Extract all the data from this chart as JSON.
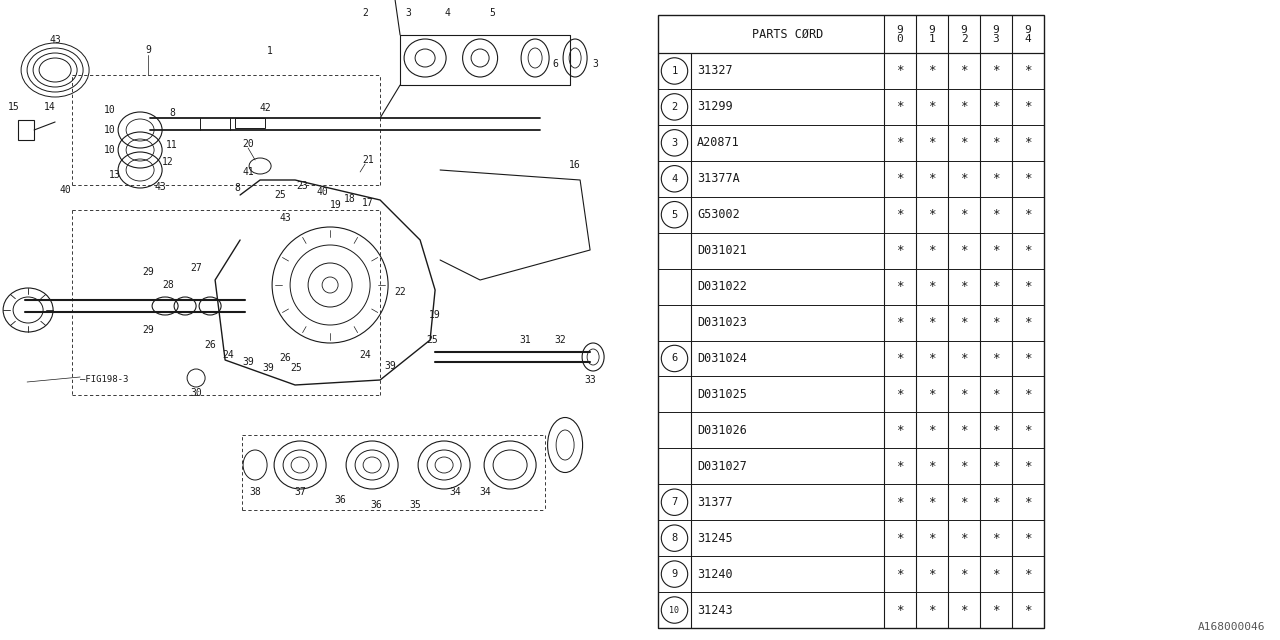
{
  "bg_color": "#ffffff",
  "line_color": "#1a1a1a",
  "watermark": "A168000046",
  "table": {
    "rows": [
      {
        "ref": "1",
        "part": "31327",
        "vals": [
          "*",
          "*",
          "*",
          "*",
          "*"
        ]
      },
      {
        "ref": "2",
        "part": "31299",
        "vals": [
          "*",
          "*",
          "*",
          "*",
          "*"
        ]
      },
      {
        "ref": "3",
        "part": "A20871",
        "vals": [
          "*",
          "*",
          "*",
          "*",
          "*"
        ]
      },
      {
        "ref": "4",
        "part": "31377A",
        "vals": [
          "*",
          "*",
          "*",
          "*",
          "*"
        ]
      },
      {
        "ref": "5",
        "part": "G53002",
        "vals": [
          "*",
          "*",
          "*",
          "*",
          "*"
        ]
      },
      {
        "ref": "",
        "part": "D031021",
        "vals": [
          "*",
          "*",
          "*",
          "*",
          "*"
        ]
      },
      {
        "ref": "",
        "part": "D031022",
        "vals": [
          "*",
          "*",
          "*",
          "*",
          "*"
        ]
      },
      {
        "ref": "",
        "part": "D031023",
        "vals": [
          "*",
          "*",
          "*",
          "*",
          "*"
        ]
      },
      {
        "ref": "6",
        "part": "D031024",
        "vals": [
          "*",
          "*",
          "*",
          "*",
          "*"
        ]
      },
      {
        "ref": "",
        "part": "D031025",
        "vals": [
          "*",
          "*",
          "*",
          "*",
          "*"
        ]
      },
      {
        "ref": "",
        "part": "D031026",
        "vals": [
          "*",
          "*",
          "*",
          "*",
          "*"
        ]
      },
      {
        "ref": "",
        "part": "D031027",
        "vals": [
          "*",
          "*",
          "*",
          "*",
          "*"
        ]
      },
      {
        "ref": "7",
        "part": "31377",
        "vals": [
          "*",
          "*",
          "*",
          "*",
          "*"
        ]
      },
      {
        "ref": "8",
        "part": "31245",
        "vals": [
          "*",
          "*",
          "*",
          "*",
          "*"
        ]
      },
      {
        "ref": "9",
        "part": "31240",
        "vals": [
          "*",
          "*",
          "*",
          "*",
          "*"
        ]
      },
      {
        "ref": "10",
        "part": "31243",
        "vals": [
          "*",
          "*",
          "*",
          "*",
          "*"
        ]
      }
    ]
  }
}
